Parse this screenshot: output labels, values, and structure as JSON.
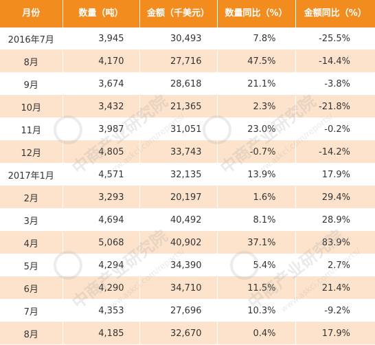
{
  "table": {
    "headers": [
      "月份",
      "数量（吨）",
      "金额（千美元）",
      "数量同比（%）",
      "金额同比（%）"
    ],
    "rows": [
      [
        "2016年7月",
        "3,945",
        "30,493",
        "7.8%",
        "-25.5%"
      ],
      [
        "8月",
        "4,170",
        "27,716",
        "47.5%",
        "-14.4%"
      ],
      [
        "9月",
        "3,674",
        "28,618",
        "21.1%",
        "-3.8%"
      ],
      [
        "10月",
        "3,432",
        "21,365",
        "2.3%",
        "-21.8%"
      ],
      [
        "11月",
        "3,987",
        "31,051",
        "23.0%",
        "-0.2%"
      ],
      [
        "12月",
        "4,805",
        "33,743",
        "-0.7%",
        "-14.2%"
      ],
      [
        "2017年1月",
        "4,571",
        "32,135",
        "13.9%",
        "17.9%"
      ],
      [
        "2月",
        "3,293",
        "20,197",
        "1.6%",
        "29.4%"
      ],
      [
        "3月",
        "4,694",
        "40,492",
        "8.1%",
        "28.9%"
      ],
      [
        "4月",
        "5,068",
        "40,902",
        "37.1%",
        "83.9%"
      ],
      [
        "5月",
        "4,294",
        "34,390",
        "5.4%",
        "2.7%"
      ],
      [
        "6月",
        "4,290",
        "34,710",
        "11.5%",
        "21.4%"
      ],
      [
        "7月",
        "4,353",
        "27,696",
        "10.3%",
        "-9.2%"
      ],
      [
        "8月",
        "4,185",
        "32,670",
        "0.4%",
        "17.9%"
      ]
    ]
  },
  "watermark": {
    "brand": "中商产业研究院",
    "url": "www.askci.com/reports/"
  },
  "colors": {
    "header_bg": "#f28c1e",
    "stripe_bg": "#fde3cc",
    "text": "#333333"
  }
}
